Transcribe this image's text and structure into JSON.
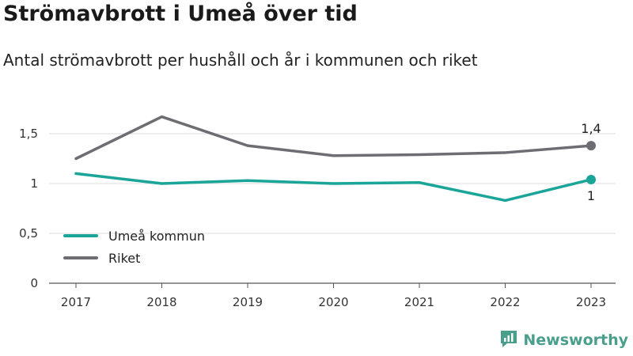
{
  "header": {
    "title": "Strömavbrott i Umeå över tid",
    "subtitle": "Antal strömavbrott per hushåll och år i kommunen och riket"
  },
  "brand": {
    "name": "Newsworthy",
    "color": "#4a9e8c",
    "icon": "newsworthy-logo-icon"
  },
  "chart_data": {
    "type": "line",
    "title": "Strömavbrott i Umeå över tid",
    "subtitle": "Antal strömavbrott per hushåll och år i kommunen och riket",
    "xlabel": "",
    "ylabel": "",
    "x": [
      "2017",
      "2018",
      "2019",
      "2020",
      "2021",
      "2022",
      "2023"
    ],
    "ylim": [
      0,
      1.8
    ],
    "yticks": [
      0,
      0.5,
      1,
      1.5
    ],
    "ytick_labels": [
      "0",
      "0,5",
      "1",
      "1,5"
    ],
    "grid": true,
    "legend_position": "bottom-left",
    "series": [
      {
        "name": "Umeå kommun",
        "color": "#1aa598",
        "values": [
          1.1,
          1.0,
          1.03,
          1.0,
          1.01,
          0.83,
          1.04
        ],
        "end_label": "1"
      },
      {
        "name": "Riket",
        "color": "#6e6d73",
        "values": [
          1.25,
          1.67,
          1.38,
          1.28,
          1.29,
          1.31,
          1.38
        ],
        "end_label": "1,4"
      }
    ]
  }
}
